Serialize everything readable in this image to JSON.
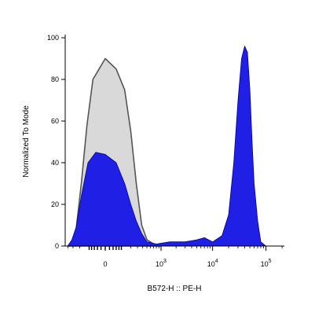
{
  "chart_data": {
    "type": "area",
    "xlabel": "B572-H :: PE-H",
    "ylabel": "Normalized To Mode",
    "ylim": [
      0,
      100
    ],
    "yticks": [
      0,
      20,
      40,
      60,
      80,
      100
    ],
    "xtick_labels": [
      {
        "base": "0",
        "exp": ""
      },
      {
        "base": "10",
        "exp": "3"
      },
      {
        "base": "10",
        "exp": "4"
      },
      {
        "base": "10",
        "exp": "5"
      }
    ],
    "x_scale": "biexponential",
    "grid": false,
    "colors": {
      "control_fill": "#d9d9d9",
      "control_line": "#555555",
      "stained_fill": "#1f1fe6",
      "stained_line": "#0000a0",
      "axis": "#000000"
    },
    "series": [
      {
        "style": "gray-outline",
        "points": [
          [
            -400,
            0
          ],
          [
            -320,
            2
          ],
          [
            -250,
            8
          ],
          [
            -180,
            30
          ],
          [
            -120,
            58
          ],
          [
            -70,
            80
          ],
          [
            0,
            90
          ],
          [
            60,
            85
          ],
          [
            130,
            75
          ],
          [
            200,
            55
          ],
          [
            280,
            30
          ],
          [
            380,
            10
          ],
          [
            500,
            3
          ],
          [
            700,
            1
          ],
          [
            1000,
            0
          ]
        ]
      },
      {
        "style": "blue-filled",
        "points": [
          [
            -400,
            0
          ],
          [
            -320,
            3
          ],
          [
            -250,
            9
          ],
          [
            -180,
            24
          ],
          [
            -110,
            40
          ],
          [
            -50,
            45
          ],
          [
            0,
            44
          ],
          [
            60,
            40
          ],
          [
            130,
            30
          ],
          [
            200,
            20
          ],
          [
            280,
            12
          ],
          [
            380,
            6
          ],
          [
            500,
            2
          ],
          [
            800,
            1
          ],
          [
            1500,
            2
          ],
          [
            3000,
            2
          ],
          [
            5000,
            3
          ],
          [
            7000,
            4
          ],
          [
            10000,
            2
          ],
          [
            15000,
            5
          ],
          [
            20000,
            15
          ],
          [
            25000,
            40
          ],
          [
            30000,
            70
          ],
          [
            35000,
            90
          ],
          [
            40000,
            96
          ],
          [
            45000,
            93
          ],
          [
            50000,
            75
          ],
          [
            55000,
            50
          ],
          [
            60000,
            30
          ],
          [
            70000,
            12
          ],
          [
            80000,
            2
          ],
          [
            100000,
            0
          ]
        ]
      }
    ]
  }
}
